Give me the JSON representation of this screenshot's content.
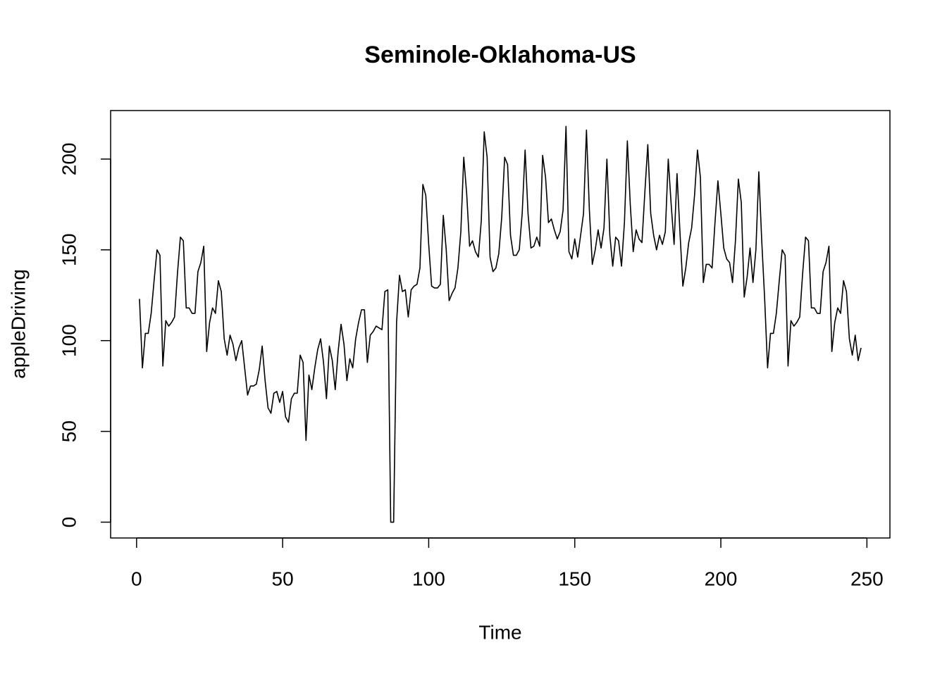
{
  "chart_data": {
    "type": "line",
    "title": "Seminole-Oklahoma-US",
    "x_label": "Time",
    "y_label": "appleDriving",
    "x": [
      1,
      2,
      3,
      4,
      5,
      6,
      7,
      8,
      9,
      10,
      11,
      12,
      13,
      14,
      15,
      16,
      17,
      18,
      19,
      20,
      21,
      22,
      23,
      24,
      25,
      26,
      27,
      28,
      29,
      30,
      31,
      32,
      33,
      34,
      35,
      36,
      37,
      38,
      39,
      40,
      41,
      42,
      43,
      44,
      45,
      46,
      47,
      48,
      49,
      50,
      51,
      52,
      53,
      54,
      55,
      56,
      57,
      58,
      59,
      60,
      61,
      62,
      63,
      64,
      65,
      66,
      67,
      68,
      69,
      70,
      71,
      72,
      73,
      74,
      75,
      76,
      77,
      78,
      79,
      80,
      81,
      82,
      83,
      84,
      85,
      86,
      87,
      88,
      89,
      90,
      91,
      92,
      93,
      94,
      95,
      96,
      97,
      98,
      99,
      100,
      101,
      102,
      103,
      104,
      105,
      106,
      107,
      108,
      109,
      110,
      111,
      112,
      113,
      114,
      115,
      116,
      117,
      118,
      119,
      120,
      121,
      122,
      123,
      124,
      125,
      126,
      127,
      128,
      129,
      130,
      131,
      132,
      133,
      134,
      135,
      136,
      137,
      138,
      139,
      140,
      141,
      142,
      143,
      144,
      145,
      146,
      147,
      148,
      149,
      150,
      151,
      152,
      153,
      154,
      155,
      156,
      157,
      158,
      159,
      160,
      161,
      162,
      163,
      164,
      165,
      166,
      167,
      168,
      169,
      170,
      171,
      172,
      173,
      174,
      175,
      176,
      177,
      178,
      179,
      180,
      181,
      182,
      183,
      184,
      185,
      186,
      187,
      188,
      189,
      190,
      191,
      192,
      193,
      194,
      195,
      196,
      197,
      198,
      199,
      200,
      201,
      202,
      203,
      204,
      205,
      206,
      207,
      208,
      209,
      210,
      211,
      212,
      213,
      214,
      215,
      216,
      217,
      218,
      219,
      220,
      221,
      222,
      223,
      224,
      225,
      226,
      227,
      228,
      229,
      230,
      231,
      232,
      233,
      234,
      235,
      236,
      237,
      238,
      239,
      240,
      241,
      242,
      243,
      244,
      245,
      246,
      247,
      248
    ],
    "values": [
      123,
      85,
      104,
      104,
      115,
      133,
      150,
      147,
      86,
      111,
      108,
      110,
      113,
      137,
      157,
      155,
      118,
      118,
      115,
      115,
      138,
      143,
      152,
      94,
      110,
      118,
      115,
      133,
      127,
      101,
      92,
      103,
      98,
      89,
      96,
      100,
      85,
      70,
      75,
      75,
      76,
      84,
      97,
      78,
      63,
      60,
      71,
      72,
      66,
      72,
      58,
      55,
      68,
      71,
      71,
      92,
      88,
      45,
      81,
      73,
      85,
      95,
      101,
      88,
      68,
      97,
      89,
      73,
      94,
      109,
      98,
      78,
      90,
      85,
      101,
      110,
      117,
      117,
      88,
      103,
      105,
      108,
      107,
      106,
      127,
      128,
      0,
      0,
      110,
      136,
      127,
      128,
      113,
      128,
      130,
      131,
      140,
      186,
      180,
      153,
      130,
      129,
      129,
      131,
      169,
      150,
      122,
      126,
      129,
      140,
      160,
      201,
      181,
      152,
      155,
      149,
      146,
      166,
      215,
      201,
      146,
      138,
      140,
      148,
      168,
      201,
      197,
      158,
      147,
      147,
      150,
      170,
      205,
      170,
      151,
      152,
      157,
      152,
      202,
      190,
      165,
      167,
      161,
      156,
      160,
      172,
      218,
      149,
      145,
      156,
      146,
      158,
      170,
      216,
      172,
      142,
      150,
      161,
      151,
      162,
      200,
      158,
      141,
      157,
      155,
      141,
      165,
      210,
      175,
      149,
      161,
      156,
      154,
      182,
      208,
      170,
      158,
      150,
      158,
      153,
      160,
      200,
      175,
      153,
      192,
      160,
      130,
      140,
      154,
      162,
      180,
      205,
      190,
      132,
      142,
      142,
      140,
      165,
      188,
      170,
      151,
      145,
      143,
      132,
      155,
      189,
      176,
      124,
      135,
      151,
      132,
      150,
      193,
      155,
      123,
      85,
      104,
      104,
      115,
      133,
      150,
      147,
      86,
      111,
      108,
      110,
      113,
      137,
      157,
      155,
      118,
      118,
      115,
      115,
      138,
      143,
      152,
      94,
      110,
      118,
      115,
      133,
      127,
      101,
      92,
      103,
      89,
      96
    ],
    "color": "#000000",
    "xlim": [
      -8.88,
      257.88
    ],
    "ylim": [
      -8.72,
      226.72
    ],
    "xticks": [
      0,
      50,
      100,
      150,
      200,
      250
    ],
    "yticks": [
      0,
      50,
      100,
      150,
      200
    ]
  }
}
